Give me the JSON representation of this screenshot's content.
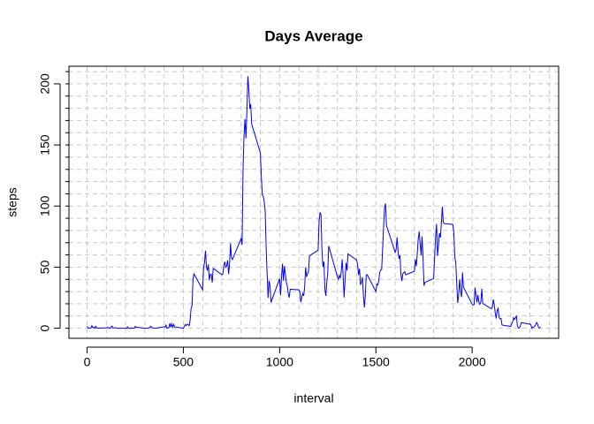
{
  "chart_data": {
    "type": "line",
    "title": "Days Average",
    "xlabel": "interval",
    "ylabel": "steps",
    "color": "#0000ff",
    "xlim": [
      -94.2,
      2449.2
    ],
    "ylim": [
      -8.25,
      214.4
    ],
    "xticks": [
      0,
      500,
      1000,
      1500,
      2000
    ],
    "yticks": [
      0,
      50,
      100,
      150,
      200
    ],
    "xgrid": [
      0,
      100,
      200,
      300,
      400,
      500,
      600,
      700,
      800,
      900,
      1000,
      1100,
      1200,
      1300,
      1400,
      1500,
      1600,
      1700,
      1800,
      1900,
      2000,
      2100,
      2200,
      2300,
      2400
    ],
    "ygrid": [
      0,
      10,
      20,
      30,
      40,
      50,
      60,
      70,
      80,
      90,
      100,
      110,
      120,
      130,
      140,
      150,
      160,
      170,
      180,
      190,
      200,
      210
    ],
    "x": [
      0,
      5,
      10,
      15,
      20,
      25,
      30,
      35,
      40,
      45,
      50,
      55,
      100,
      105,
      110,
      115,
      120,
      125,
      130,
      135,
      140,
      145,
      150,
      155,
      200,
      205,
      210,
      215,
      220,
      225,
      230,
      235,
      240,
      245,
      250,
      255,
      300,
      305,
      310,
      315,
      320,
      325,
      330,
      335,
      340,
      345,
      350,
      355,
      400,
      405,
      410,
      415,
      420,
      425,
      430,
      435,
      440,
      445,
      450,
      455,
      500,
      505,
      510,
      515,
      520,
      525,
      530,
      535,
      540,
      545,
      550,
      555,
      600,
      605,
      610,
      615,
      620,
      625,
      630,
      635,
      640,
      645,
      650,
      655,
      700,
      705,
      710,
      715,
      720,
      725,
      730,
      735,
      740,
      745,
      750,
      755,
      800,
      805,
      810,
      815,
      820,
      825,
      830,
      835,
      840,
      845,
      850,
      855,
      900,
      905,
      910,
      915,
      920,
      925,
      930,
      935,
      940,
      945,
      950,
      955,
      1000,
      1005,
      1010,
      1015,
      1020,
      1025,
      1030,
      1035,
      1040,
      1045,
      1050,
      1055,
      1100,
      1105,
      1110,
      1115,
      1120,
      1125,
      1130,
      1135,
      1140,
      1145,
      1150,
      1155,
      1200,
      1205,
      1210,
      1215,
      1220,
      1225,
      1230,
      1235,
      1240,
      1245,
      1250,
      1255,
      1300,
      1305,
      1310,
      1315,
      1320,
      1325,
      1330,
      1335,
      1340,
      1345,
      1350,
      1355,
      1400,
      1405,
      1410,
      1415,
      1420,
      1425,
      1430,
      1435,
      1440,
      1445,
      1450,
      1455,
      1500,
      1505,
      1510,
      1515,
      1520,
      1525,
      1530,
      1535,
      1540,
      1545,
      1550,
      1555,
      1600,
      1605,
      1610,
      1615,
      1620,
      1625,
      1630,
      1635,
      1640,
      1645,
      1650,
      1655,
      1700,
      1705,
      1710,
      1715,
      1720,
      1725,
      1730,
      1735,
      1740,
      1745,
      1750,
      1755,
      1800,
      1805,
      1810,
      1815,
      1820,
      1825,
      1830,
      1835,
      1840,
      1845,
      1850,
      1855,
      1900,
      1905,
      1910,
      1915,
      1920,
      1925,
      1930,
      1935,
      1940,
      1945,
      1950,
      1955,
      2000,
      2005,
      2010,
      2015,
      2020,
      2025,
      2030,
      2035,
      2040,
      2045,
      2050,
      2055,
      2100,
      2105,
      2110,
      2115,
      2120,
      2125,
      2130,
      2135,
      2140,
      2145,
      2150,
      2155,
      2200,
      2205,
      2210,
      2215,
      2220,
      2225,
      2230,
      2235,
      2240,
      2245,
      2250,
      2255,
      2300,
      2305,
      2310,
      2315,
      2320,
      2325,
      2330,
      2335,
      2340,
      2345,
      2350,
      2355
    ],
    "values": [
      1.7,
      0.3,
      0.1,
      0.2,
      0.1,
      2.1,
      0.5,
      0.9,
      0,
      1.5,
      0.3,
      0.1,
      0.3,
      0.7,
      0.2,
      0.3,
      0,
      1.1,
      1.8,
      0.2,
      0.2,
      0.4,
      0.3,
      0,
      0,
      0,
      1.1,
      0,
      0,
      0.1,
      0,
      0.2,
      0,
      0,
      1.5,
      0.9,
      0,
      0,
      0,
      0,
      0.2,
      0.6,
      1.6,
      0.6,
      0.5,
      0.1,
      0,
      0,
      1.2,
      0.9,
      2.6,
      0,
      0.3,
      0.4,
      4.1,
      0.7,
      3.5,
      0.8,
      3.1,
      1.1,
      0,
      1.6,
      3,
      2.2,
      3.3,
      3,
      2.1,
      6.1,
      16,
      18.3,
      39.5,
      44.5,
      31.5,
      49.3,
      53.8,
      63.5,
      50,
      47.1,
      52.2,
      39.3,
      44,
      44.2,
      37.4,
      49,
      43.8,
      44.4,
      50.5,
      54.5,
      49.9,
      51,
      55.7,
      44.3,
      52.3,
      69.5,
      57.8,
      56.2,
      73.4,
      68.2,
      129.4,
      157.5,
      171.2,
      155.4,
      177.3,
      206.2,
      195.9,
      179.6,
      183.4,
      167,
      143.5,
      124,
      109.1,
      108.1,
      103.7,
      95.9,
      66.2,
      45.2,
      24.8,
      38.8,
      35,
      21.1,
      40.6,
      27,
      42.4,
      52.7,
      38.9,
      50.8,
      44.3,
      37.4,
      34.7,
      28.3,
      25.1,
      31.9,
      31.4,
      29.7,
      21.3,
      25.5,
      28.4,
      26.5,
      33.4,
      50,
      42,
      44.6,
      46,
      59.2,
      63.9,
      87.7,
      94.8,
      92.8,
      63.4,
      50.2,
      54.5,
      32.4,
      26.5,
      37.7,
      45.1,
      67.3,
      42.3,
      39.9,
      43.3,
      41,
      46.2,
      56.4,
      42.8,
      25.1,
      40,
      53.5,
      47.3,
      60.8,
      55.8,
      52,
      43.6,
      48.7,
      35.5,
      37.5,
      41.8,
      27.5,
      17.1,
      26.1,
      43.6,
      43.8,
      30,
      36.1,
      35.5,
      38.8,
      46,
      47.8,
      48.1,
      65.3,
      82.9,
      98.7,
      102.1,
      84,
      62.1,
      64.1,
      74.5,
      63.2,
      56.9,
      59.8,
      43.9,
      38.6,
      44.7,
      45.5,
      46.2,
      43.7,
      46.6,
      56.3,
      50.7,
      61.2,
      73.4,
      79.1,
      68.9,
      59.7,
      75.1,
      56.5,
      34.8,
      37.5,
      40.7,
      58,
      74.7,
      85.3,
      59.3,
      67.8,
      77.7,
      74.2,
      85.3,
      99.5,
      86.6,
      85.6,
      84.9,
      77.8,
      58,
      53.4,
      36.3,
      20.7,
      27.4,
      40,
      30.2,
      25.5,
      45.7,
      33.5,
      19.6,
      19,
      19.3,
      33.3,
      26.8,
      21.2,
      27.3,
      21.3,
      19.5,
      21.3,
      32.3,
      20.2,
      15.9,
      17.2,
      23.5,
      19.2,
      12.5,
      8,
      14.7,
      16.3,
      8.7,
      7.8,
      8.1,
      2.6,
      1.5,
      3.7,
      4.8,
      8.5,
      7.1,
      8.7,
      9.8,
      2.2,
      0.3,
      0.1,
      1.6,
      4.6,
      3.3,
      2.8,
      0,
      0.8,
      1,
      1.6,
      2.6,
      4.7,
      3.3,
      0.6,
      0.2,
      1.1
    ]
  }
}
